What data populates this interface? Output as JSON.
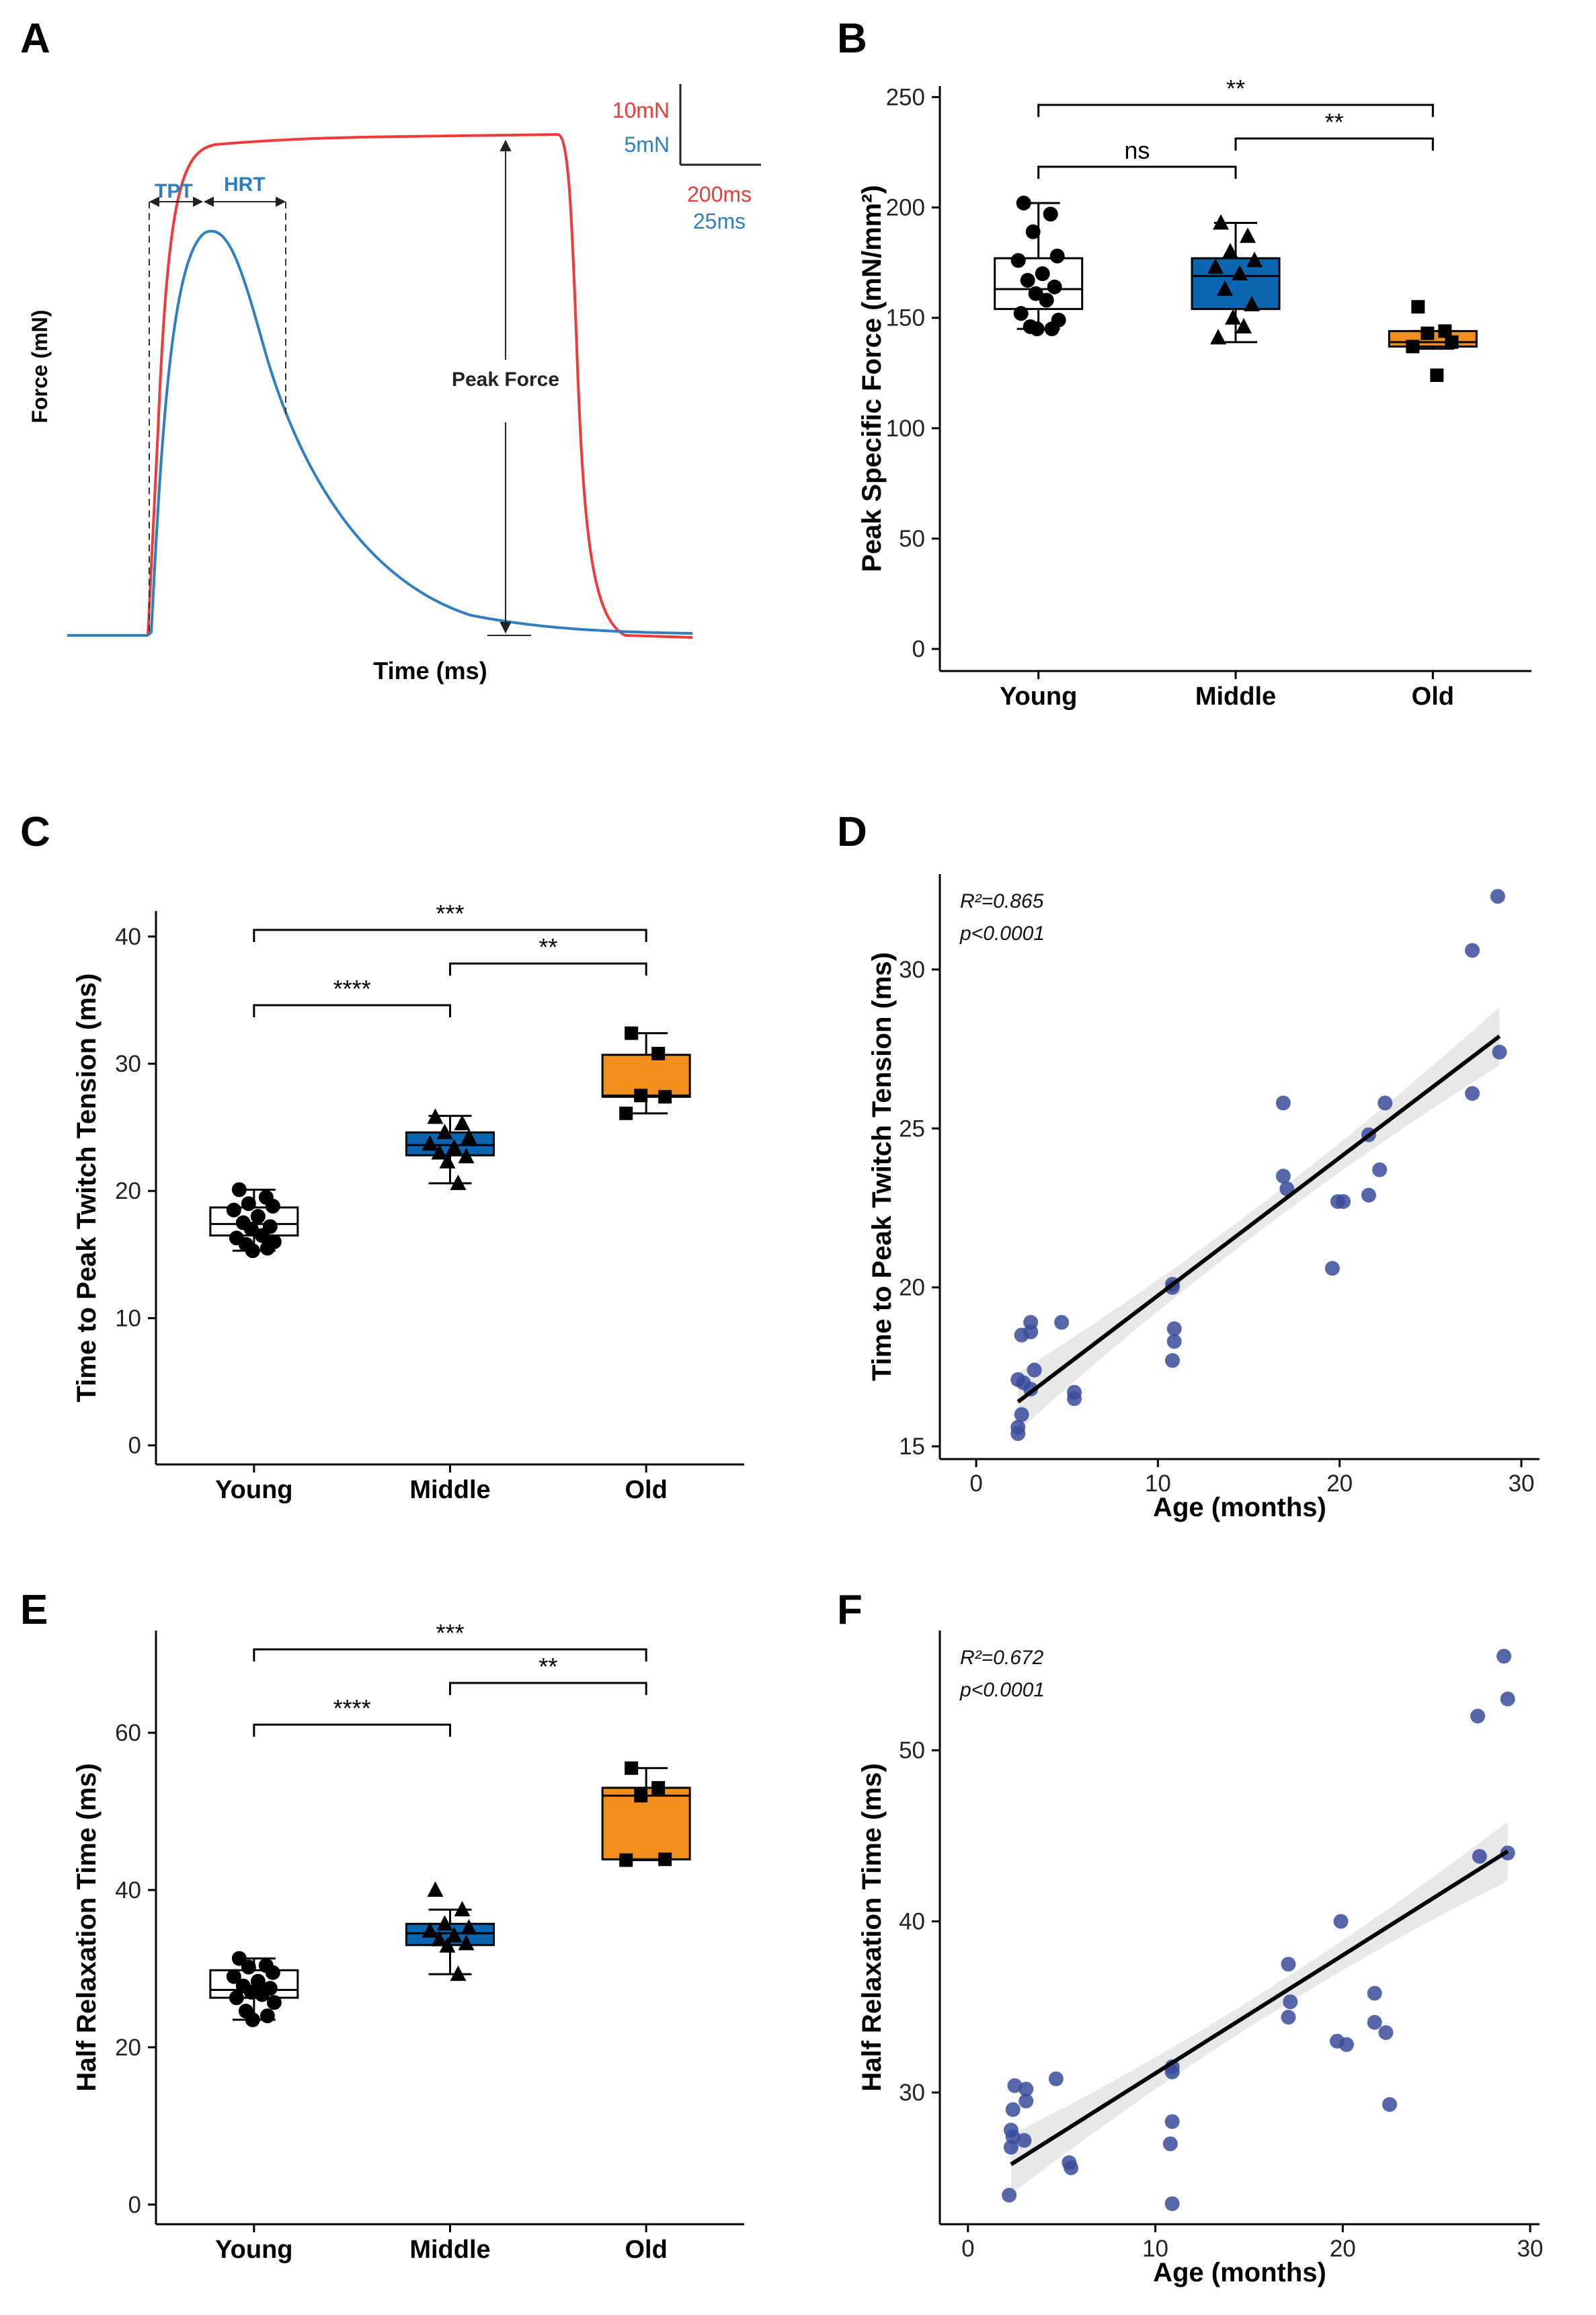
{
  "colors": {
    "young": "#ffffff",
    "middle": "#0a66b0",
    "old": "#f28e1e",
    "tetanic": "#f03a3a",
    "twitch": "#2f7fc0",
    "scatter": "#3a4b9a",
    "band": "#e6e6e6"
  },
  "panel_A": {
    "letter": "A",
    "ylabel": "Force (mN)",
    "xlabel": "Time (ms)",
    "scale_tetanic_force": "10mN",
    "scale_twitch_force": "5mN",
    "scale_tetanic_time": "200ms",
    "scale_twitch_time": "25ms",
    "label_tpt": "TPT",
    "label_hrt": "HRT",
    "label_peak": "Peak Force"
  },
  "chart_data": [
    {
      "id": "B",
      "type": "box",
      "letter": "B",
      "ylabel": "Peak Specific Force (mN/mm²)",
      "ylim": [
        -10,
        255
      ],
      "yticks": [
        "0",
        "50",
        "100",
        "150",
        "200",
        "250"
      ],
      "categories": [
        "Young",
        "Middle",
        "Old"
      ],
      "boxes": [
        {
          "group": "Young",
          "min": 145,
          "q1": 154,
          "median": 163,
          "q3": 177,
          "max": 202
        },
        {
          "group": "Middle",
          "min": 139,
          "q1": 154,
          "median": 169,
          "q3": 177,
          "max": 193
        },
        {
          "group": "Old",
          "min": 136,
          "q1": 137,
          "median": 139,
          "q3": 144,
          "max": 144
        }
      ],
      "points": [
        {
          "group": "Young",
          "values": [
            202,
            197,
            189,
            178,
            176,
            170,
            167,
            164,
            161,
            158,
            152,
            149,
            146,
            145,
            145
          ]
        },
        {
          "group": "Middle",
          "values": [
            193,
            187,
            180,
            176,
            173,
            170,
            163,
            156,
            150,
            146,
            141
          ]
        },
        {
          "group": "Old",
          "values": [
            155,
            144,
            143,
            139,
            137,
            124
          ]
        }
      ],
      "significance": [
        {
          "from": "Young",
          "to": "Old",
          "label": "**"
        },
        {
          "from": "Middle",
          "to": "Old",
          "label": "**"
        },
        {
          "from": "Young",
          "to": "Middle",
          "label": "ns"
        }
      ]
    },
    {
      "id": "C",
      "type": "box",
      "letter": "C",
      "ylabel": "Time to Peak Twitch Tension (ms)",
      "ylim": [
        -1.5,
        42
      ],
      "yticks": [
        "0",
        "10",
        "20",
        "30",
        "40"
      ],
      "categories": [
        "Young",
        "Middle",
        "Old"
      ],
      "boxes": [
        {
          "group": "Young",
          "min": 15.3,
          "q1": 16.5,
          "median": 17.4,
          "q3": 18.7,
          "max": 20.1
        },
        {
          "group": "Middle",
          "min": 20.6,
          "q1": 22.8,
          "median": 23.6,
          "q3": 24.6,
          "max": 25.9
        },
        {
          "group": "Old",
          "min": 26.1,
          "q1": 27.4,
          "median": 27.5,
          "q3": 30.7,
          "max": 32.4
        }
      ],
      "points": [
        {
          "group": "Young",
          "values": [
            20.1,
            19.5,
            19.0,
            18.8,
            18.5,
            18.0,
            17.5,
            17.2,
            17.0,
            16.5,
            16.3,
            16.0,
            15.8,
            15.5,
            15.3
          ]
        },
        {
          "group": "Middle",
          "values": [
            25.8,
            25.3,
            24.6,
            24.2,
            23.7,
            23.4,
            23.0,
            22.7,
            22.3,
            20.6
          ]
        },
        {
          "group": "Old",
          "values": [
            32.4,
            30.8,
            27.5,
            27.4,
            26.1
          ]
        }
      ],
      "significance": [
        {
          "from": "Young",
          "to": "Old",
          "label": "***"
        },
        {
          "from": "Middle",
          "to": "Old",
          "label": "**"
        },
        {
          "from": "Young",
          "to": "Middle",
          "label": "****"
        }
      ]
    },
    {
      "id": "D",
      "type": "scatter",
      "letter": "D",
      "xlabel": "Age (months)",
      "ylabel": "Time to Peak Twitch Tension (ms)",
      "xlim": [
        -2,
        31
      ],
      "ylim": [
        14.6,
        33
      ],
      "xticks": [
        "0",
        "10",
        "20",
        "30"
      ],
      "yticks": [
        "15",
        "20",
        "25",
        "30"
      ],
      "r2_label": "R²=0.865",
      "p_label": "p<0.0001",
      "fit": {
        "x": [
          2.3,
          28.8
        ],
        "y": [
          16.4,
          27.9
        ]
      },
      "points": [
        [
          2.3,
          15.4
        ],
        [
          2.3,
          15.6
        ],
        [
          2.5,
          16.0
        ],
        [
          2.3,
          17.1
        ],
        [
          2.6,
          17.0
        ],
        [
          2.5,
          18.5
        ],
        [
          3.0,
          18.6
        ],
        [
          3.0,
          18.9
        ],
        [
          3.2,
          17.4
        ],
        [
          3.0,
          16.8
        ],
        [
          4.7,
          18.9
        ],
        [
          5.4,
          16.7
        ],
        [
          5.4,
          16.5
        ],
        [
          10.8,
          20.0
        ],
        [
          10.8,
          20.1
        ],
        [
          10.9,
          18.7
        ],
        [
          10.9,
          18.3
        ],
        [
          10.8,
          17.7
        ],
        [
          16.9,
          25.8
        ],
        [
          16.9,
          23.5
        ],
        [
          17.1,
          23.1
        ],
        [
          19.6,
          20.6
        ],
        [
          19.9,
          22.7
        ],
        [
          20.2,
          22.7
        ],
        [
          21.6,
          22.9
        ],
        [
          21.6,
          24.8
        ],
        [
          22.2,
          23.7
        ],
        [
          22.5,
          25.8
        ],
        [
          27.3,
          30.6
        ],
        [
          27.3,
          26.1
        ],
        [
          28.7,
          32.3
        ],
        [
          28.8,
          27.4
        ]
      ]
    },
    {
      "id": "E",
      "type": "box",
      "letter": "E",
      "ylabel": "Half Relaxation Time (ms)",
      "ylim": [
        -2.5,
        73
      ],
      "yticks": [
        "0",
        "20",
        "40",
        "60"
      ],
      "categories": [
        "Young",
        "Middle",
        "Old"
      ],
      "boxes": [
        {
          "group": "Young",
          "min": 23.5,
          "q1": 26.3,
          "median": 27.3,
          "q3": 29.8,
          "max": 31.3
        },
        {
          "group": "Middle",
          "min": 29.3,
          "q1": 33.0,
          "median": 34.5,
          "q3": 35.7,
          "max": 37.5
        },
        {
          "group": "Old",
          "min": 43.8,
          "q1": 43.9,
          "median": 52.0,
          "q3": 53.0,
          "max": 55.5
        }
      ],
      "points": [
        {
          "group": "Young",
          "values": [
            31.3,
            30.4,
            30.2,
            29.5,
            29.0,
            28.4,
            27.8,
            27.5,
            27.0,
            26.7,
            26.3,
            25.7,
            24.6,
            24.0,
            23.5
          ]
        },
        {
          "group": "Middle",
          "values": [
            40.0,
            37.5,
            35.7,
            35.2,
            34.8,
            34.2,
            33.7,
            33.2,
            32.9,
            29.3
          ]
        },
        {
          "group": "Old",
          "values": [
            55.5,
            53.0,
            52.0,
            43.9,
            43.8
          ]
        }
      ],
      "significance": [
        {
          "from": "Young",
          "to": "Old",
          "label": "***"
        },
        {
          "from": "Middle",
          "to": "Old",
          "label": "**"
        },
        {
          "from": "Young",
          "to": "Middle",
          "label": "****"
        }
      ]
    },
    {
      "id": "F",
      "type": "scatter",
      "letter": "F",
      "xlabel": "Age (months)",
      "ylabel": "Half Relaxation Time (ms)",
      "xlim": [
        -1.5,
        30.5
      ],
      "ylim": [
        22.3,
        57
      ],
      "xticks": [
        "0",
        "10",
        "20",
        "30"
      ],
      "yticks": [
        "30",
        "40",
        "50"
      ],
      "r2_label": "R²=0.672",
      "p_label": "p<0.0001",
      "fit": {
        "x": [
          2.3,
          28.8
        ],
        "y": [
          25.8,
          44.1
        ]
      },
      "points": [
        [
          2.2,
          24.0
        ],
        [
          2.3,
          26.8
        ],
        [
          2.4,
          27.4
        ],
        [
          2.3,
          27.8
        ],
        [
          2.4,
          29.0
        ],
        [
          2.5,
          30.4
        ],
        [
          3.0,
          27.2
        ],
        [
          3.1,
          29.5
        ],
        [
          3.1,
          30.2
        ],
        [
          4.7,
          30.8
        ],
        [
          5.4,
          25.9
        ],
        [
          5.5,
          25.6
        ],
        [
          10.9,
          23.5
        ],
        [
          10.8,
          27.0
        ],
        [
          10.9,
          28.3
        ],
        [
          10.9,
          31.2
        ],
        [
          10.9,
          31.5
        ],
        [
          17.1,
          37.5
        ],
        [
          17.2,
          35.3
        ],
        [
          17.1,
          34.4
        ],
        [
          19.7,
          33.0
        ],
        [
          19.9,
          40.0
        ],
        [
          20.2,
          32.8
        ],
        [
          21.7,
          35.8
        ],
        [
          21.7,
          34.1
        ],
        [
          22.3,
          33.5
        ],
        [
          22.5,
          29.3
        ],
        [
          27.2,
          52.0
        ],
        [
          27.3,
          43.8
        ],
        [
          28.6,
          55.5
        ],
        [
          28.8,
          53.0
        ],
        [
          28.8,
          44.0
        ]
      ]
    }
  ]
}
